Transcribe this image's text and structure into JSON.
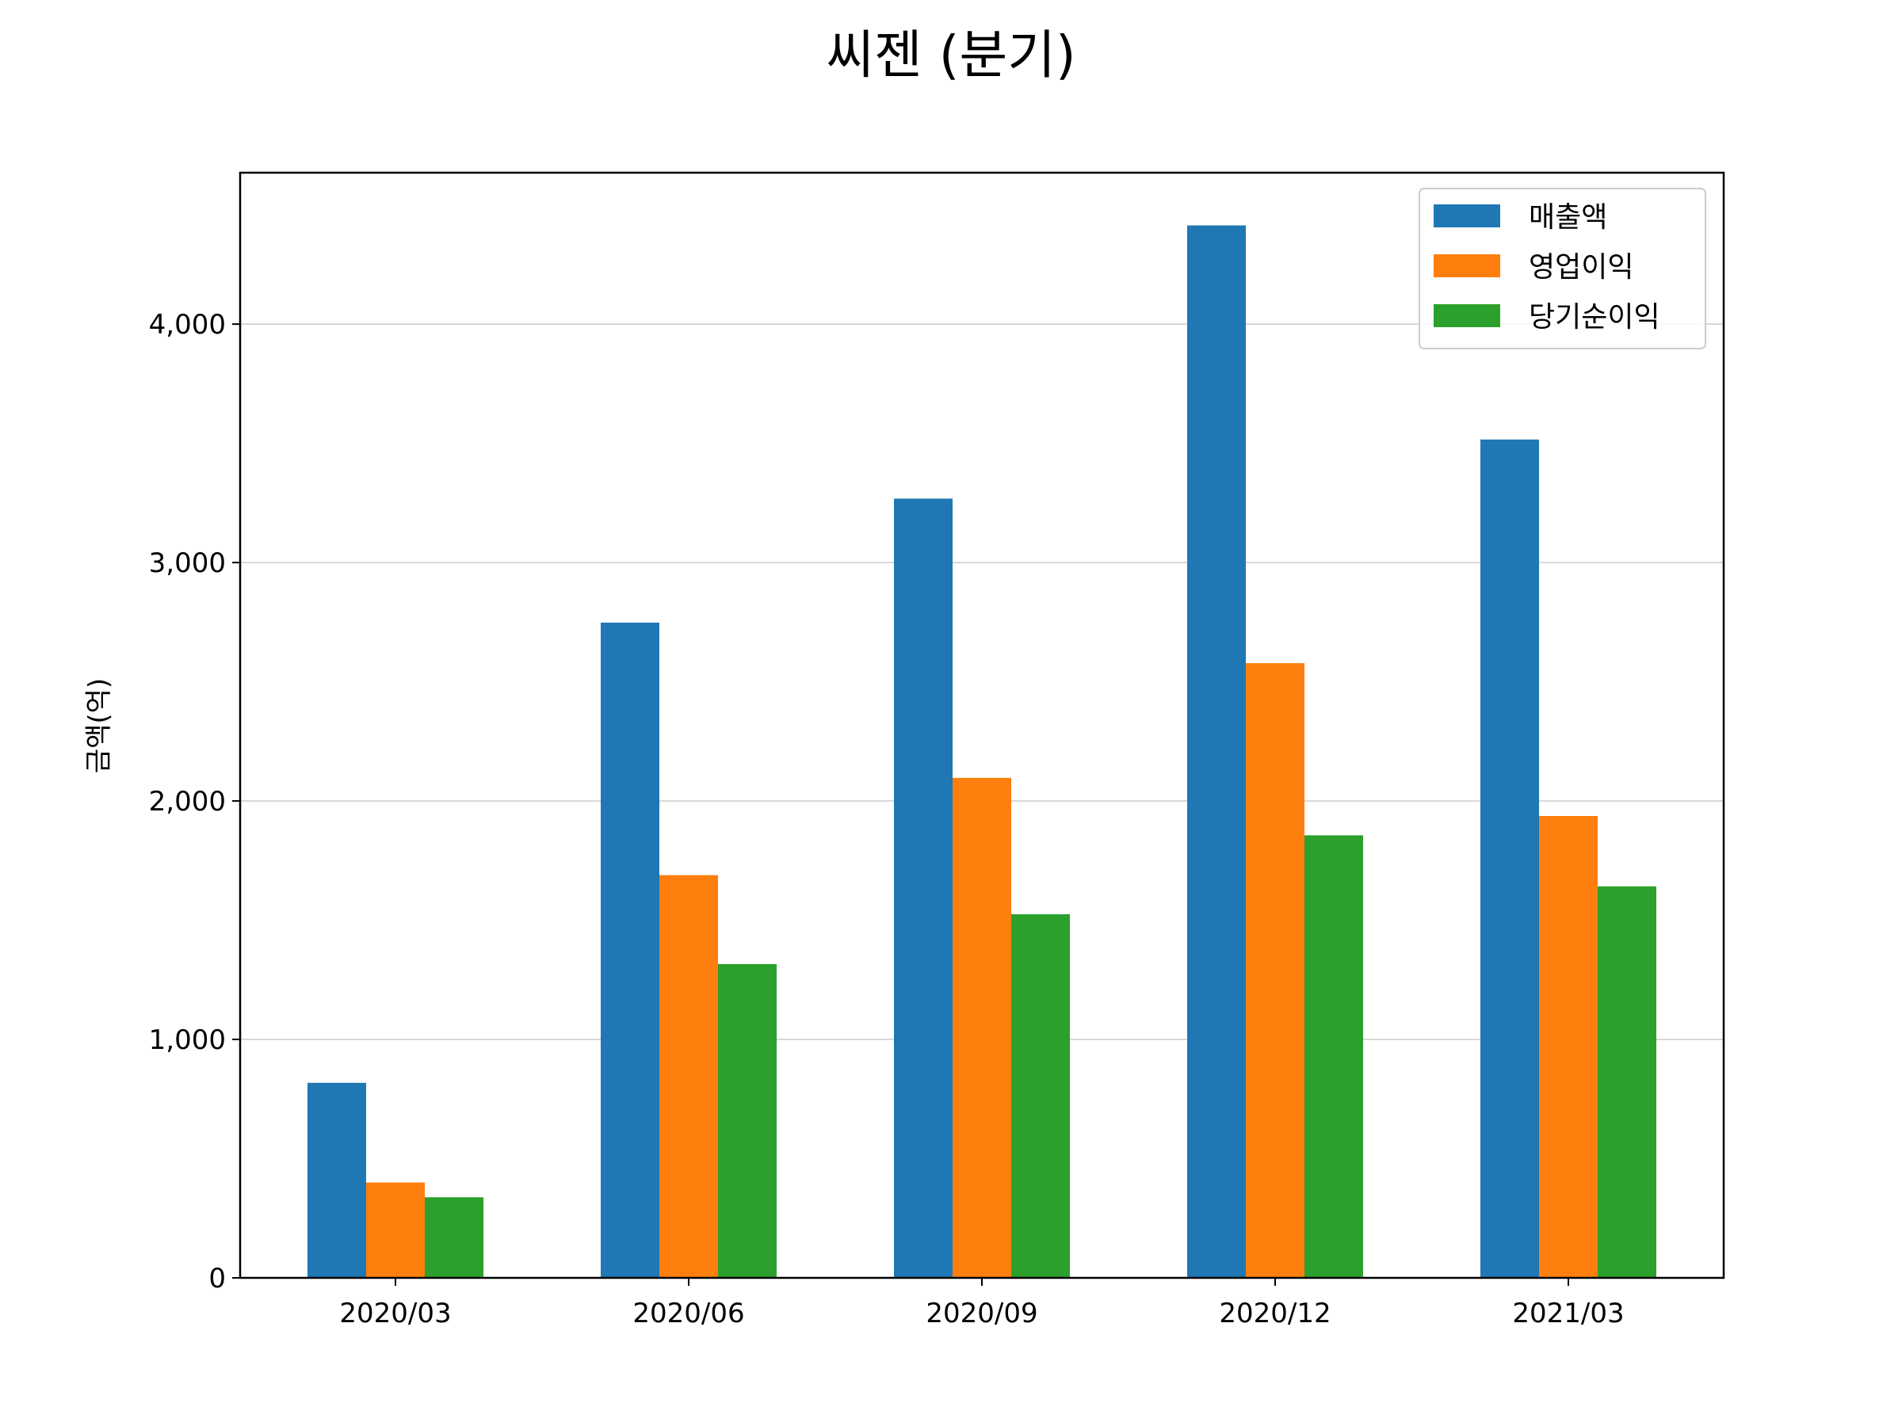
{
  "chart_data": {
    "type": "bar",
    "title": "씨젠 (분기)",
    "xlabel": "",
    "ylabel": "금액(억)",
    "categories": [
      "2020/03",
      "2020/06",
      "2020/09",
      "2020/12",
      "2021/03"
    ],
    "series": [
      {
        "name": "매출액",
        "color": "#1f77b4",
        "values": [
          818,
          2748,
          3268,
          4414,
          3516
        ]
      },
      {
        "name": "영업이익",
        "color": "#ff7f0e",
        "values": [
          400,
          1689,
          2097,
          2578,
          1937
        ]
      },
      {
        "name": "당기순이익",
        "color": "#2ca02c",
        "values": [
          338,
          1316,
          1525,
          1856,
          1642
        ]
      }
    ],
    "ylim": [
      0,
      4635
    ],
    "yticks": [
      0,
      1000,
      2000,
      3000,
      4000
    ],
    "ytick_labels": [
      "0",
      "1,000",
      "2,000",
      "3,000",
      "4,000"
    ],
    "grid": "y",
    "legend_position": "top-right"
  }
}
